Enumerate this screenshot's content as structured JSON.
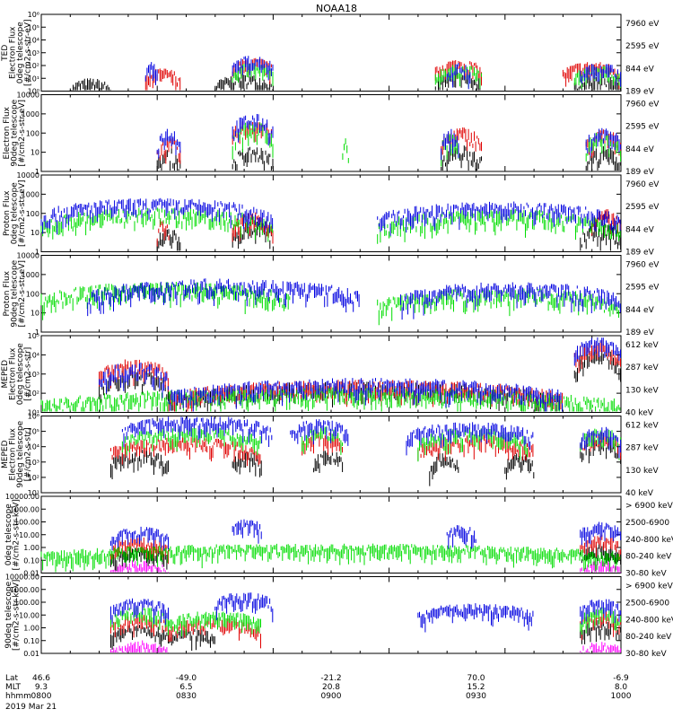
{
  "title": "NOAA18",
  "colors": {
    "black": "#000000",
    "red": "#e00000",
    "green": "#00dd00",
    "blue": "#0000e0",
    "magenta": "#ff00ff"
  },
  "footer": {
    "row_labels": [
      "Lat",
      "MLT",
      "hhmm"
    ],
    "date": "2019 Mar 21",
    "columns": [
      {
        "lat": "46.6",
        "mlt": "9.3",
        "hhmm": "0800"
      },
      {
        "lat": "-49.0",
        "mlt": "6.5",
        "hhmm": "0830"
      },
      {
        "lat": "-21.2",
        "mlt": "20.8",
        "hhmm": "0900"
      },
      {
        "lat": "70.0",
        "mlt": "15.2",
        "hhmm": "0930"
      },
      {
        "lat": "-6.9",
        "mlt": "8.0",
        "hhmm": "1000"
      }
    ]
  },
  "chart_data": [
    {
      "type": "line",
      "name": "TED Electron Flux 0deg telescope",
      "ylabel": [
        "TED",
        "Electron Flux",
        "0deg telescope",
        "[#/cm2-s-str-eV]"
      ],
      "yscale": "log",
      "ylim": [
        1,
        1000000
      ],
      "ytick_labels": [
        "10⁰",
        "10¹",
        "10²",
        "10³",
        "10⁴",
        "10⁵",
        "10⁶"
      ],
      "legend": [
        {
          "label": "7960 eV",
          "color": "black"
        },
        {
          "label": "2595 eV",
          "color": "red"
        },
        {
          "label": "844 eV",
          "color": "green"
        },
        {
          "label": "189 eV",
          "color": "blue"
        }
      ],
      "series_profile": {
        "black": [
          [
            0.05,
            0.12,
            5
          ],
          [
            0.3,
            0.4,
            10
          ],
          [
            0.68,
            0.76,
            15
          ],
          [
            0.92,
            1.0,
            10
          ]
        ],
        "red": [
          [
            0.18,
            0.24,
            30
          ],
          [
            0.33,
            0.4,
            200
          ],
          [
            0.68,
            0.76,
            150
          ],
          [
            0.9,
            1.0,
            100
          ]
        ],
        "green": [
          [
            0.33,
            0.4,
            80
          ],
          [
            0.68,
            0.76,
            60
          ],
          [
            0.92,
            1.0,
            50
          ]
        ],
        "blue": [
          [
            0.18,
            0.2,
            100
          ],
          [
            0.33,
            0.4,
            300
          ],
          [
            0.7,
            0.74,
            80
          ],
          [
            0.93,
            1.0,
            80
          ]
        ]
      }
    },
    {
      "type": "line",
      "name": "Electron Flux 90deg telescope",
      "ylabel": [
        "Electron Flux",
        "90deg telescope",
        "[#/cm2-s-str-eV]"
      ],
      "yscale": "log",
      "ylim": [
        1,
        10000
      ],
      "ytick_labels": [
        "1",
        "10",
        "100",
        "1000",
        "10000"
      ],
      "legend": [
        {
          "label": "7960 eV",
          "color": "black"
        },
        {
          "label": "2595 eV",
          "color": "red"
        },
        {
          "label": "844 eV",
          "color": "green"
        },
        {
          "label": "189 eV",
          "color": "blue"
        }
      ],
      "series_profile": {
        "black": [
          [
            0.2,
            0.24,
            8
          ],
          [
            0.33,
            0.4,
            10
          ],
          [
            0.69,
            0.76,
            12
          ],
          [
            0.94,
            1.0,
            10
          ]
        ],
        "red": [
          [
            0.2,
            0.24,
            30
          ],
          [
            0.33,
            0.4,
            300
          ],
          [
            0.69,
            0.76,
            100
          ],
          [
            0.94,
            1.0,
            80
          ]
        ],
        "green": [
          [
            0.33,
            0.4,
            200
          ],
          [
            0.52,
            0.53,
            30
          ],
          [
            0.69,
            0.72,
            50
          ],
          [
            0.94,
            1.0,
            60
          ]
        ],
        "blue": [
          [
            0.2,
            0.24,
            100
          ],
          [
            0.33,
            0.4,
            500
          ],
          [
            0.69,
            0.72,
            80
          ],
          [
            0.94,
            1.0,
            100
          ]
        ]
      }
    },
    {
      "type": "line",
      "name": "Proton Flux 0deg telescope",
      "ylabel": [
        "Proton Flux",
        "0deg telescope",
        "[#/cm2-s-str-eV]"
      ],
      "yscale": "log",
      "ylim": [
        1,
        10000
      ],
      "ytick_labels": [
        "1",
        "10",
        "100",
        "1000",
        "10000"
      ],
      "legend": [
        {
          "label": "7960 eV",
          "color": "black"
        },
        {
          "label": "2595 eV",
          "color": "red"
        },
        {
          "label": "844 eV",
          "color": "green"
        },
        {
          "label": "189 eV",
          "color": "blue"
        }
      ],
      "series_profile": {
        "black": [
          [
            0.2,
            0.24,
            10
          ],
          [
            0.33,
            0.4,
            20
          ],
          [
            0.93,
            1.0,
            15
          ]
        ],
        "red": [
          [
            0.2,
            0.22,
            30
          ],
          [
            0.33,
            0.4,
            60
          ],
          [
            0.95,
            1.0,
            80
          ]
        ],
        "green": [
          [
            0.0,
            0.4,
            100
          ],
          [
            0.58,
            1.0,
            80
          ]
        ],
        "blue": [
          [
            0.0,
            0.4,
            300
          ],
          [
            0.58,
            1.0,
            200
          ]
        ]
      }
    },
    {
      "type": "line",
      "name": "Proton Flux 90deg telescope",
      "ylabel": [
        "Proton Flux",
        "90deg telescope",
        "[#/cm2-s-str-eV]"
      ],
      "yscale": "log",
      "ylim": [
        1,
        10000
      ],
      "ytick_labels": [
        "1",
        "10",
        "100",
        "1000",
        "10000"
      ],
      "legend": [
        {
          "label": "7960 eV",
          "color": "black"
        },
        {
          "label": "2595 eV",
          "color": "red"
        },
        {
          "label": "844 eV",
          "color": "green"
        },
        {
          "label": "189 eV",
          "color": "blue"
        }
      ],
      "series_profile": {
        "green": [
          [
            0.0,
            0.43,
            200
          ],
          [
            0.58,
            1.0,
            100
          ]
        ],
        "blue": [
          [
            0.08,
            0.55,
            300
          ],
          [
            0.62,
            1.0,
            200
          ]
        ]
      }
    },
    {
      "type": "line",
      "name": "MEPED Electron Flux 0deg telescope",
      "ylabel": [
        "MEPED",
        "Electron Flux",
        "0deg telescope",
        "[#/cm2-s-str]"
      ],
      "yscale": "log",
      "ylim": [
        10,
        100000
      ],
      "ytick_labels": [
        "10¹",
        "10²",
        "10³",
        "10⁴",
        "10⁵"
      ],
      "legend": [
        {
          "label": "612 keV",
          "color": "black"
        },
        {
          "label": "287 keV",
          "color": "red"
        },
        {
          "label": "130 keV",
          "color": "green"
        },
        {
          "label": "40 keV",
          "color": "blue"
        }
      ],
      "series_profile": {
        "black": [
          [
            0.1,
            0.22,
            800
          ],
          [
            0.22,
            0.9,
            200
          ],
          [
            0.92,
            1.0,
            10000
          ]
        ],
        "red": [
          [
            0.1,
            0.22,
            3000
          ],
          [
            0.22,
            0.9,
            250
          ],
          [
            0.92,
            1.0,
            30000
          ]
        ],
        "green": [
          [
            0.0,
            1.0,
            100
          ]
        ],
        "blue": [
          [
            0.1,
            0.22,
            2000
          ],
          [
            0.22,
            0.9,
            300
          ],
          [
            0.92,
            1.0,
            40000
          ]
        ]
      }
    },
    {
      "type": "line",
      "name": "MEPED Electron Flux 90deg telescope",
      "ylabel": [
        "MEPED",
        "Electron Flux",
        "90deg telescope",
        "[#/cm2-s-str]"
      ],
      "yscale": "log",
      "ylim": [
        10,
        1000000
      ],
      "ytick_labels": [
        "10¹",
        "10²",
        "10³",
        "10⁴",
        "10⁵",
        "10⁶"
      ],
      "legend": [
        {
          "label": "612 keV",
          "color": "black"
        },
        {
          "label": "287 keV",
          "color": "red"
        },
        {
          "label": "130 keV",
          "color": "green"
        },
        {
          "label": "40 keV",
          "color": "blue"
        }
      ],
      "series_profile": {
        "black": [
          [
            0.12,
            0.22,
            3000
          ],
          [
            0.33,
            0.38,
            3000
          ],
          [
            0.47,
            0.52,
            3000
          ],
          [
            0.67,
            0.72,
            2000
          ],
          [
            0.8,
            0.85,
            2000
          ],
          [
            0.93,
            1.0,
            20000
          ]
        ],
        "red": [
          [
            0.12,
            0.38,
            20000
          ],
          [
            0.45,
            0.52,
            50000
          ],
          [
            0.65,
            0.85,
            30000
          ],
          [
            0.93,
            1.0,
            50000
          ]
        ],
        "green": [
          [
            0.14,
            0.38,
            100000
          ],
          [
            0.45,
            0.52,
            100000
          ],
          [
            0.65,
            0.84,
            80000
          ],
          [
            0.93,
            1.0,
            80000
          ]
        ],
        "blue": [
          [
            0.14,
            0.4,
            500000
          ],
          [
            0.43,
            0.53,
            300000
          ],
          [
            0.63,
            0.85,
            200000
          ],
          [
            0.93,
            1.0,
            100000
          ]
        ]
      }
    },
    {
      "type": "line",
      "name": "MEPED Proton Flux 0deg telescope",
      "ylabel": [
        "0deg telescope",
        "[#/cm2-s-str-keV]"
      ],
      "yscale": "log",
      "ylim": [
        0.01,
        10000
      ],
      "ytick_labels": [
        "0.01",
        "0.10",
        "1.00",
        "10.00",
        "100.00",
        "1000.00",
        "10000.00"
      ],
      "legend": [
        {
          "label": "> 6900 keV",
          "color": "magenta"
        },
        {
          "label": "2500-6900",
          "color": "black"
        },
        {
          "label": "240-800 keV",
          "color": "red"
        },
        {
          "label": "80-240 keV",
          "color": "green"
        },
        {
          "label": "30-80 keV",
          "color": "blue"
        }
      ],
      "series_profile": {
        "magenta": [
          [
            0.12,
            0.22,
            0.05
          ],
          [
            0.93,
            1.0,
            0.05
          ]
        ],
        "black": [
          [
            0.12,
            0.22,
            0.5
          ],
          [
            0.93,
            1.0,
            1
          ]
        ],
        "red": [
          [
            0.12,
            0.22,
            3
          ],
          [
            0.93,
            1.0,
            5
          ]
        ],
        "green": [
          [
            0.0,
            1.0,
            1
          ]
        ],
        "blue": [
          [
            0.12,
            0.22,
            20
          ],
          [
            0.33,
            0.38,
            100
          ],
          [
            0.7,
            0.75,
            30
          ],
          [
            0.93,
            1.0,
            50
          ]
        ]
      }
    },
    {
      "type": "line",
      "name": "MEPED Proton Flux 90deg telescope",
      "ylabel": [
        "90deg telescope",
        "[#/cm2-s-str-keV]"
      ],
      "yscale": "log",
      "ylim": [
        0.01,
        10000
      ],
      "ytick_labels": [
        "0.01",
        "0.10",
        "1.00",
        "10.00",
        "100.00",
        "1000.00",
        "10000.00"
      ],
      "legend": [
        {
          "label": "> 6900 keV",
          "color": "magenta"
        },
        {
          "label": "2500-6900",
          "color": "black"
        },
        {
          "label": "240-800 keV",
          "color": "red"
        },
        {
          "label": "80-240 keV",
          "color": "green"
        },
        {
          "label": "30-80 keV",
          "color": "blue"
        }
      ],
      "series_profile": {
        "magenta": [
          [
            0.12,
            0.22,
            0.05
          ],
          [
            0.93,
            1.0,
            0.05
          ]
        ],
        "black": [
          [
            0.12,
            0.22,
            1
          ],
          [
            0.22,
            0.3,
            0.5
          ],
          [
            0.93,
            1.0,
            2
          ]
        ],
        "red": [
          [
            0.12,
            0.22,
            5
          ],
          [
            0.22,
            0.38,
            3
          ],
          [
            0.93,
            1.0,
            10
          ]
        ],
        "green": [
          [
            0.12,
            0.22,
            20
          ],
          [
            0.22,
            0.38,
            10
          ],
          [
            0.93,
            1.0,
            20
          ]
        ],
        "blue": [
          [
            0.12,
            0.22,
            100
          ],
          [
            0.3,
            0.4,
            300
          ],
          [
            0.65,
            0.85,
            40
          ],
          [
            0.93,
            1.0,
            100
          ]
        ]
      }
    }
  ]
}
